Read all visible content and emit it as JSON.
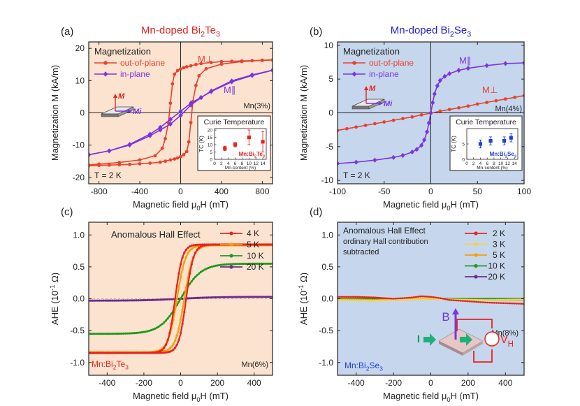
{
  "chart_data": [
    {
      "id": "a",
      "type": "line",
      "panel_label": "(a)",
      "title": "Mn-doped Bi2Te3",
      "title_main": "Mn-doped Bi",
      "title_sub1": "2",
      "title_mid": "Te",
      "title_sub2": "3",
      "title_color": "#e8231f",
      "xlabel": "Magnetic field μ0H (mT)",
      "xlabel_main": "Magnetic field μ",
      "xlabel_sub": "0",
      "xlabel_end": "H (mT)",
      "ylabel": "Magnetization M (kA/m)",
      "xlim": [
        -900,
        900
      ],
      "ylim": [
        -22,
        22
      ],
      "xticks": [
        -800,
        -400,
        0,
        400,
        800
      ],
      "yticks": [
        -20,
        -10,
        0,
        10,
        20
      ],
      "background": "#fbe3cf",
      "legend_title": "Magnetization",
      "series": [
        {
          "name": "out-of-plane",
          "color": "#e8412f",
          "marker": "circle",
          "segments": [
            {
              "x": [
                -900,
                -800,
                -600,
                -400,
                -250,
                -180,
                -150,
                -120,
                -100,
                -80,
                -60,
                -30,
                0,
                30,
                60,
                100,
                150,
                200,
                300,
                400,
                500,
                600,
                700,
                800,
                900
              ],
              "y": [
                -16.2,
                -15.9,
                -15.4,
                -14.6,
                -13.3,
                -11.0,
                -8.0,
                -3.0,
                3.0,
                9.0,
                12.0,
                13.1,
                13.6,
                14.0,
                14.3,
                14.6,
                15.0,
                15.3,
                15.6,
                15.9,
                16.0,
                16.1,
                16.2,
                16.3,
                16.4
              ]
            },
            {
              "x": [
                900,
                800,
                600,
                400,
                250,
                180,
                150,
                120,
                100,
                80,
                60,
                30,
                0,
                -30,
                -60,
                -100,
                -150,
                -200,
                -300,
                -400,
                -500,
                -600,
                -700,
                -800,
                -900
              ],
              "y": [
                16.4,
                16.3,
                15.9,
                15.1,
                13.7,
                11.5,
                8.5,
                3.5,
                -3.0,
                -9.0,
                -12.0,
                -13.0,
                -13.6,
                -14.0,
                -14.3,
                -14.6,
                -15.0,
                -15.3,
                -15.6,
                -15.8,
                -16.0,
                -16.1,
                -16.2,
                -16.3,
                -16.4
              ]
            }
          ]
        },
        {
          "name": "in-plane",
          "color": "#7a35e0",
          "marker": "diamond",
          "segments": [
            {
              "x": [
                -900,
                -700,
                -500,
                -300,
                -200,
                -100,
                0,
                100,
                200,
                300,
                500,
                700,
                900
              ],
              "y": [
                -13.0,
                -11.8,
                -9.8,
                -6.6,
                -4.5,
                -2.0,
                0.5,
                3.0,
                4.8,
                6.6,
                9.6,
                11.6,
                13.2
              ]
            },
            {
              "x": [
                900,
                700,
                500,
                300,
                200,
                100,
                0,
                -100,
                -200,
                -300,
                -500,
                -700,
                -900
              ],
              "y": [
                13.2,
                11.8,
                9.9,
                6.8,
                4.7,
                2.4,
                -0.8,
                -3.5,
                -5.3,
                -7.1,
                -10.0,
                -11.8,
                -13.0
              ]
            }
          ]
        }
      ],
      "annotations": {
        "m_perp": "M⊥",
        "m_par": "M∥",
        "doping": "Mn(3%)",
        "temperature": "T = 2 K",
        "m_label": "M",
        "mi_label": "Mi"
      },
      "inset": {
        "title": "Curie Temperature",
        "xlabel": "Mn-content  (%)",
        "ylabel": "TC (K)",
        "xlim": [
          0,
          15
        ],
        "ylim": [
          0,
          21
        ],
        "xticks": [
          0,
          2,
          4,
          6,
          8,
          10,
          12,
          14
        ],
        "yticks": [
          0,
          5,
          10,
          15,
          20
        ],
        "x": [
          3,
          6,
          10,
          14
        ],
        "y": [
          7.5,
          10.0,
          15.0,
          12.0
        ],
        "err": [
          1.5,
          1.5,
          5.0,
          7.0
        ],
        "label": "Mn:Bi2Te3",
        "label_main": "Mn:Bi",
        "label_sub1": "2",
        "label_mid": "Te",
        "label_sub2": "3",
        "color": "#e8231f"
      }
    },
    {
      "id": "b",
      "type": "line",
      "panel_label": "(b)",
      "title": "Mn-doped Bi2Se3",
      "title_main": "Mn-doped Bi",
      "title_sub1": "2",
      "title_mid": "Se",
      "title_sub2": "3",
      "title_color": "#1f1fd6",
      "xlabel": "Magnetic field μ0H (mT)",
      "xlabel_main": "Magnetic field μ",
      "xlabel_sub": "0",
      "xlabel_end": "H (mT)",
      "ylabel": "Magnetization M (kA/m)",
      "xlim": [
        -100,
        100
      ],
      "ylim": [
        -10.5,
        10.5
      ],
      "xticks": [
        -100,
        -50,
        0,
        50,
        100
      ],
      "yticks": [
        -10,
        -5,
        0,
        5,
        10
      ],
      "background": "#c6d6ec",
      "legend_title": "Magnetization",
      "series": [
        {
          "name": "out-of-plane",
          "color": "#e8412f",
          "marker": "circle",
          "segments": [
            {
              "x": [
                -100,
                -90,
                -80,
                -70,
                -60,
                -50,
                -40,
                -30,
                -20,
                -10,
                0,
                10,
                20,
                30,
                40,
                50,
                60,
                70,
                80,
                90,
                100
              ],
              "y": [
                -2.6,
                -2.35,
                -2.1,
                -1.85,
                -1.6,
                -1.35,
                -1.1,
                -0.85,
                -0.6,
                -0.3,
                -0.05,
                0.25,
                0.5,
                0.75,
                1.0,
                1.3,
                1.55,
                1.8,
                2.05,
                2.3,
                2.55
              ]
            }
          ]
        },
        {
          "name": "in-plane",
          "color": "#7a35e0",
          "marker": "diamond",
          "segments": [
            {
              "x": [
                -100,
                -80,
                -60,
                -40,
                -30,
                -20,
                -15,
                -10,
                -7,
                -4,
                -2,
                0,
                2,
                4,
                7,
                10,
                15,
                20,
                30,
                40,
                60,
                80,
                100
              ],
              "y": [
                -7.5,
                -7.3,
                -7.0,
                -6.6,
                -6.3,
                -5.8,
                -5.4,
                -4.8,
                -4.0,
                -2.8,
                -1.5,
                0.0,
                1.5,
                2.8,
                4.0,
                4.8,
                5.4,
                5.8,
                6.3,
                6.6,
                7.0,
                7.3,
                7.4
              ]
            }
          ]
        }
      ],
      "annotations": {
        "m_perp": "M⊥",
        "m_par": "M∥",
        "doping": "Mn(4%)",
        "temperature": "T = 2 K",
        "m_label": "M",
        "mi_label": "Mi"
      },
      "inset": {
        "title": "Curie Temperature",
        "xlabel": "Mn-content  (%)",
        "ylabel": "TC (K)",
        "xlim": [
          0,
          15
        ],
        "ylim": [
          0,
          10
        ],
        "xticks": [
          0,
          2,
          4,
          6,
          8,
          10,
          12,
          14
        ],
        "yticks": [
          0,
          5
        ],
        "x": [
          4,
          7,
          11,
          13
        ],
        "y": [
          5.0,
          6.0,
          6.0,
          7.0
        ],
        "err": [
          1.3,
          1.3,
          1.3,
          1.3
        ],
        "label": "Mn:Bi2Se3",
        "label_main": "Mn:Bi",
        "label_sub1": "2",
        "label_mid": "Se",
        "label_sub2": "3",
        "color": "#1f3fd6"
      }
    },
    {
      "id": "c",
      "type": "line",
      "panel_label": "(c)",
      "title": "Anomalous Hall Effect",
      "xlabel": "Magnetic field μ0H (mT)",
      "xlabel_main": "Magnetic field μ",
      "xlabel_sub": "0",
      "xlabel_end": "H (mT)",
      "ylabel": "AHE (10-1 Ω)",
      "ylabel_main": "AHE (10",
      "ylabel_sup": "-1",
      "ylabel_end": " Ω)",
      "xlim": [
        -500,
        500
      ],
      "ylim": [
        -1.2,
        1.2
      ],
      "xticks": [
        -400,
        -200,
        0,
        200,
        400
      ],
      "yticks": [
        -1.0,
        -0.5,
        0.0,
        0.5,
        1.0
      ],
      "background": "#fbe3cf",
      "series": [
        {
          "name": "4 K",
          "color": "#e8231f",
          "loop": true,
          "sat": 0.85,
          "hc": 30,
          "w": 40
        },
        {
          "name": "5 K",
          "color": "#f5a000",
          "loop": true,
          "sat": 0.84,
          "hc": 20,
          "w": 48
        },
        {
          "name": "10 K",
          "color": "#1f9a1f",
          "loop": false,
          "sat": 0.55,
          "hc": 0,
          "w": 110
        },
        {
          "name": "20 K",
          "color": "#6e2a8e",
          "loop": false,
          "sat": 0.03,
          "hc": 0,
          "w": 200
        }
      ],
      "annotations": {
        "sample": "Mn:Bi2Te3",
        "sample_main": "Mn:Bi",
        "sample_sub1": "2",
        "sample_mid": "Te",
        "sample_sub2": "3",
        "doping": "Mn(6%)"
      }
    },
    {
      "id": "d",
      "type": "line",
      "panel_label": "(d)",
      "title": "Anomalous Hall Effect",
      "subtitle": "ordinary Hall contribution subtracted",
      "subtitle_line1": "ordinary Hall contribution",
      "subtitle_line2": "subtracted",
      "xlabel": "Magnetic field μ0H (mT)",
      "xlabel_main": "Magnetic field μ",
      "xlabel_sub": "0",
      "xlabel_end": "H (mT)",
      "ylabel": "AHE (10-1 Ω)",
      "ylabel_main": "AHE (10",
      "ylabel_sup": "-1",
      "ylabel_end": " Ω)",
      "xlim": [
        -500,
        500
      ],
      "ylim": [
        -1.2,
        1.2
      ],
      "xticks": [
        -400,
        -200,
        0,
        200,
        400
      ],
      "yticks": [
        -1.0,
        -0.5,
        0.0,
        0.5,
        1.0
      ],
      "background": "#c6d6ec",
      "series": [
        {
          "name": "2 K",
          "color": "#e8231f",
          "x": [
            -500,
            -400,
            -300,
            -200,
            -100,
            -50,
            0,
            50,
            100,
            200,
            300,
            400,
            500
          ],
          "y": [
            0.03,
            0.03,
            0.02,
            0.0,
            0.02,
            0.04,
            0.03,
            0.01,
            -0.02,
            -0.04,
            -0.06,
            -0.07,
            -0.08
          ]
        },
        {
          "name": "3 K",
          "color": "#f2d24c",
          "x": [
            -500,
            -300,
            -100,
            0,
            100,
            300,
            500
          ],
          "y": [
            -0.02,
            -0.03,
            -0.01,
            0.0,
            -0.01,
            -0.02,
            -0.01
          ]
        },
        {
          "name": "5 K",
          "color": "#f5a000",
          "x": [
            -500,
            -300,
            -100,
            0,
            100,
            300,
            500
          ],
          "y": [
            -0.01,
            -0.02,
            0.0,
            0.01,
            -0.01,
            -0.02,
            -0.02
          ]
        },
        {
          "name": "10 K",
          "color": "#1f9a1f",
          "x": [
            -500,
            -300,
            -100,
            0,
            100,
            300,
            500
          ],
          "y": [
            0.0,
            0.0,
            0.0,
            0.0,
            0.0,
            0.0,
            0.0
          ]
        },
        {
          "name": "20 K",
          "color": "#6e2a8e",
          "x": [
            -500,
            -300,
            -100,
            0,
            100,
            300,
            500
          ],
          "y": [
            0.0,
            0.0,
            0.0,
            0.0,
            0.0,
            0.0,
            0.0
          ]
        }
      ],
      "annotations": {
        "sample": "Mn:Bi2Se3",
        "sample_main": "Mn:Bi",
        "sample_sub1": "2",
        "sample_mid": "Se",
        "sample_sub2": "3",
        "doping": "Mn(8%)",
        "b_label": "B",
        "i_label": "I",
        "vh_main": "V",
        "vh_sub": "H"
      }
    }
  ]
}
